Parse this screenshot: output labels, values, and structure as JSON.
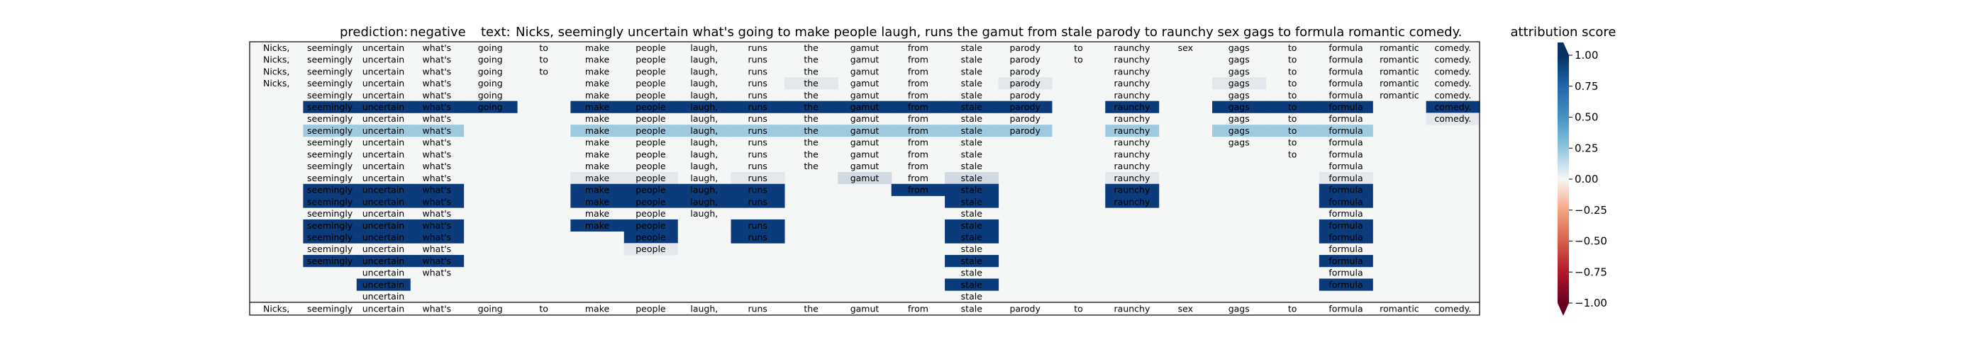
{
  "header": {
    "prediction_label": "prediction:",
    "prediction": "negative",
    "text_label": "text:",
    "text": "Nicks, seemingly uncertain what's going to make people laugh, runs the gamut from stale parody to raunchy sex gags to formula romantic comedy."
  },
  "chart_data": {
    "type": "heatmap",
    "tokens": [
      "Nicks,",
      "seemingly",
      "uncertain",
      "what's",
      "going",
      "to",
      "make",
      "people",
      "laugh,",
      "runs",
      "the",
      "gamut",
      "from",
      "stale",
      "parody",
      "to",
      "raunchy",
      "sex",
      "gags",
      "to",
      "formula",
      "romantic",
      "comedy."
    ],
    "rows": [
      [
        0.0,
        0.0,
        0.0,
        0.0,
        0.0,
        0.0,
        0.0,
        0.0,
        0.0,
        0.0,
        0.0,
        0.0,
        0.0,
        0.0,
        0.0,
        0.0,
        0.0,
        0.0,
        0.0,
        0.0,
        0.0,
        0.0,
        0.0
      ],
      [
        0.0,
        0.0,
        0.0,
        0.0,
        0.0,
        0.0,
        0.0,
        0.0,
        0.0,
        0.0,
        0.0,
        0.0,
        0.0,
        0.0,
        0.0,
        0.0,
        0.0,
        null,
        0.0,
        0.0,
        0.0,
        0.0,
        0.0
      ],
      [
        0.0,
        0.0,
        0.0,
        0.0,
        0.0,
        0.0,
        0.0,
        0.0,
        0.0,
        0.0,
        0.0,
        0.0,
        0.0,
        0.0,
        0.0,
        null,
        0.0,
        null,
        0.0,
        0.0,
        0.0,
        0.0,
        0.0
      ],
      [
        0.0,
        0.0,
        0.0,
        0.0,
        0.0,
        null,
        0.0,
        0.0,
        0.0,
        0.0,
        0.05,
        0.0,
        0.0,
        0.0,
        0.05,
        null,
        0.0,
        null,
        0.05,
        0.0,
        0.0,
        0.0,
        0.0
      ],
      [
        null,
        0.0,
        0.0,
        0.0,
        0.0,
        null,
        0.0,
        0.0,
        0.0,
        0.0,
        0.0,
        0.0,
        0.0,
        0.0,
        0.0,
        null,
        0.0,
        null,
        0.0,
        0.0,
        0.0,
        0.0,
        0.0
      ],
      [
        null,
        1.0,
        1.0,
        1.0,
        1.0,
        null,
        1.0,
        1.0,
        1.0,
        1.0,
        1.0,
        1.0,
        1.0,
        1.0,
        1.0,
        null,
        1.0,
        null,
        1.0,
        1.0,
        1.0,
        null,
        1.0
      ],
      [
        null,
        0.0,
        0.0,
        0.0,
        null,
        null,
        0.0,
        0.0,
        0.0,
        0.0,
        0.0,
        0.0,
        0.0,
        0.0,
        0.0,
        null,
        0.0,
        null,
        0.0,
        0.0,
        0.0,
        null,
        0.05
      ],
      [
        null,
        0.4,
        0.4,
        0.4,
        null,
        null,
        0.4,
        0.4,
        0.4,
        0.4,
        0.4,
        0.4,
        0.4,
        0.4,
        0.4,
        null,
        0.4,
        null,
        0.4,
        0.4,
        0.4,
        null,
        null
      ],
      [
        null,
        0.0,
        0.0,
        0.0,
        null,
        null,
        0.0,
        0.0,
        0.0,
        0.0,
        0.0,
        0.0,
        0.0,
        0.0,
        null,
        null,
        0.0,
        null,
        0.0,
        0.0,
        0.0,
        null,
        null
      ],
      [
        null,
        0.0,
        0.0,
        0.0,
        null,
        null,
        0.0,
        0.0,
        0.0,
        0.0,
        0.0,
        0.0,
        0.0,
        0.0,
        null,
        null,
        0.0,
        null,
        null,
        0.0,
        0.0,
        null,
        null
      ],
      [
        null,
        0.0,
        0.0,
        0.0,
        null,
        null,
        0.0,
        0.0,
        0.0,
        0.0,
        0.0,
        0.0,
        0.0,
        0.0,
        null,
        null,
        0.0,
        null,
        null,
        null,
        0.0,
        null,
        null
      ],
      [
        null,
        0.0,
        0.0,
        0.0,
        null,
        null,
        0.05,
        0.05,
        0.0,
        0.05,
        null,
        0.1,
        0.0,
        0.1,
        null,
        null,
        0.05,
        null,
        null,
        null,
        0.05,
        null,
        null
      ],
      [
        null,
        1.0,
        1.0,
        1.0,
        null,
        null,
        1.0,
        1.0,
        1.0,
        1.0,
        null,
        null,
        1.0,
        1.0,
        null,
        null,
        1.0,
        null,
        null,
        null,
        1.0,
        null,
        null
      ],
      [
        null,
        1.0,
        1.0,
        1.0,
        null,
        null,
        1.0,
        1.0,
        1.0,
        1.0,
        null,
        null,
        null,
        1.0,
        null,
        null,
        1.0,
        null,
        null,
        null,
        1.0,
        null,
        null
      ],
      [
        null,
        0.0,
        0.0,
        0.0,
        null,
        null,
        0.0,
        0.0,
        0.0,
        null,
        null,
        null,
        null,
        0.0,
        null,
        null,
        null,
        null,
        null,
        null,
        0.0,
        null,
        null
      ],
      [
        null,
        1.0,
        1.0,
        1.0,
        null,
        null,
        1.0,
        1.0,
        null,
        1.0,
        null,
        null,
        null,
        1.0,
        null,
        null,
        null,
        null,
        null,
        null,
        1.0,
        null,
        null
      ],
      [
        null,
        1.0,
        1.0,
        1.0,
        null,
        null,
        null,
        1.0,
        null,
        1.0,
        null,
        null,
        null,
        1.0,
        null,
        null,
        null,
        null,
        null,
        null,
        1.0,
        null,
        null
      ],
      [
        null,
        0.0,
        0.0,
        0.0,
        null,
        null,
        null,
        0.05,
        null,
        null,
        null,
        null,
        null,
        0.0,
        null,
        null,
        null,
        null,
        null,
        null,
        0.0,
        null,
        null
      ],
      [
        null,
        1.0,
        1.0,
        1.0,
        null,
        null,
        null,
        null,
        null,
        null,
        null,
        null,
        null,
        1.0,
        null,
        null,
        null,
        null,
        null,
        null,
        1.0,
        null,
        null
      ],
      [
        null,
        null,
        0.0,
        0.0,
        null,
        null,
        null,
        null,
        null,
        null,
        null,
        null,
        null,
        0.0,
        null,
        null,
        null,
        null,
        null,
        null,
        0.0,
        null,
        null
      ],
      [
        null,
        null,
        1.0,
        null,
        null,
        null,
        null,
        null,
        null,
        null,
        null,
        null,
        null,
        1.0,
        null,
        null,
        null,
        null,
        null,
        null,
        1.0,
        null,
        null
      ],
      [
        null,
        null,
        0.0,
        null,
        null,
        null,
        null,
        null,
        null,
        null,
        null,
        null,
        null,
        0.0,
        null,
        null,
        null,
        null,
        null,
        null,
        null,
        null,
        null
      ]
    ],
    "colorbar": {
      "label": "attribution score",
      "range": [
        -1.0,
        1.0
      ],
      "ticks": [
        "1.00",
        "0.75",
        "0.50",
        "0.25",
        "0.00",
        "−0.25",
        "−0.50",
        "−0.75",
        "−1.00"
      ],
      "tick_values": [
        1.0,
        0.75,
        0.5,
        0.25,
        0.0,
        -0.25,
        -0.5,
        -0.75,
        -1.0
      ],
      "colormap": "RdBu",
      "extend": "both"
    }
  },
  "colors": {
    "empty_cell": "#f5f7f7",
    "axes_frame": "#000000"
  }
}
